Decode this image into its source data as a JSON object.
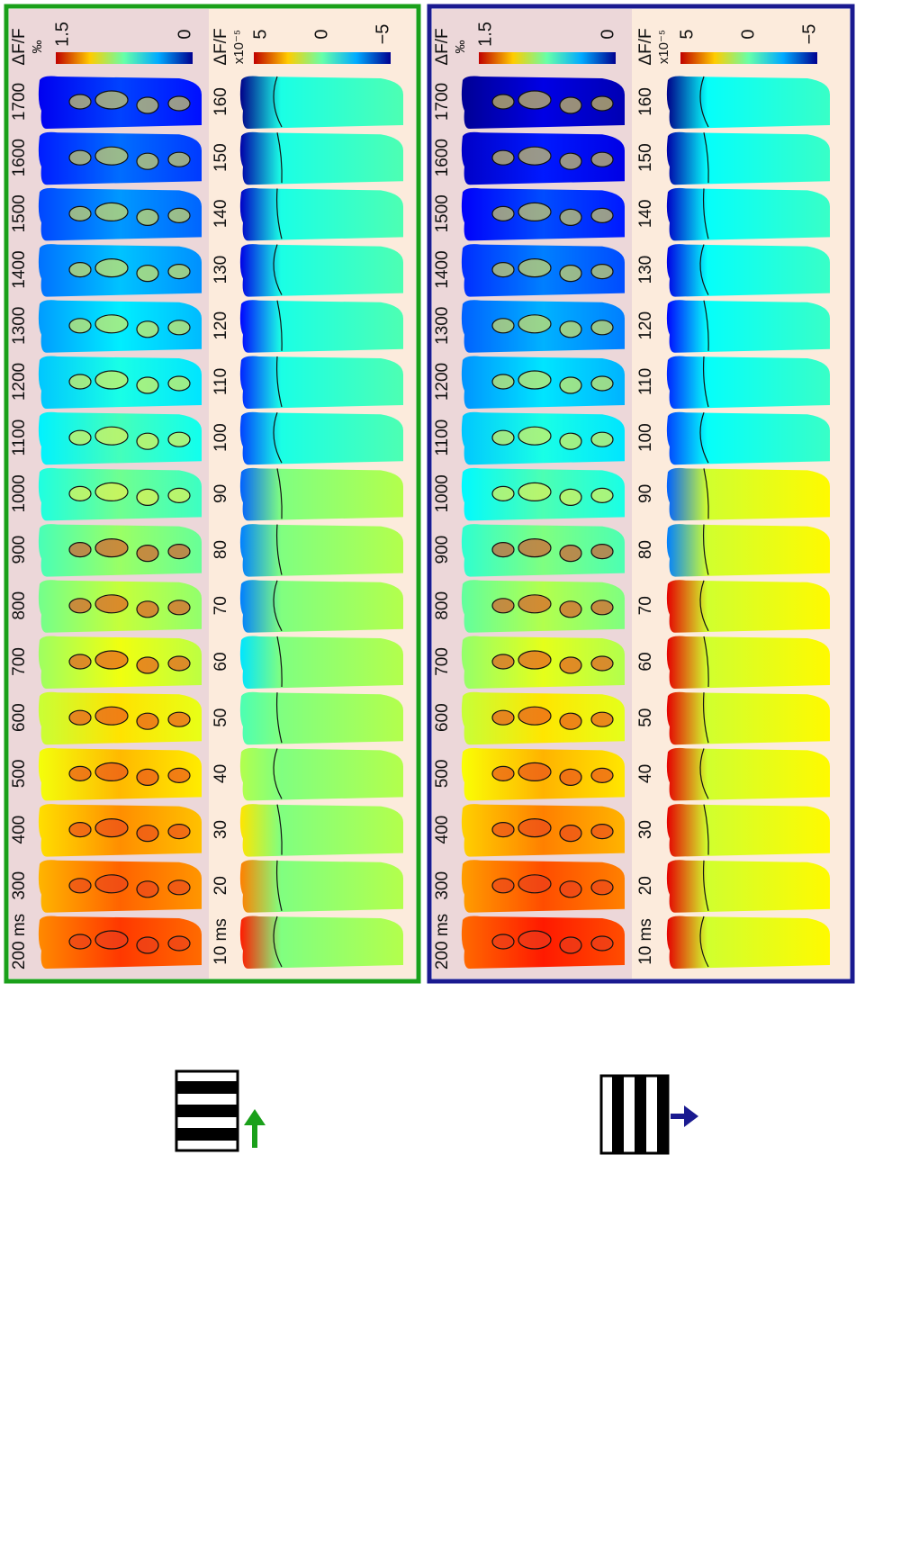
{
  "panels": [
    {
      "left": {
        "unit": "ΔF/F",
        "unit_sub": "‰",
        "cbar_labels": [
          "1.5",
          "0"
        ],
        "frame_labels": [
          "200 ms",
          "300",
          "400",
          "500",
          "600",
          "700",
          "800",
          "900",
          "1000",
          "1100",
          "1200",
          "1300",
          "1400",
          "1500",
          "1600",
          "1700"
        ]
      },
      "right": {
        "unit": "ΔF/F",
        "unit_sub": "x10⁻⁵",
        "cbar_labels": [
          "5",
          "0",
          "−5"
        ],
        "frame_labels": [
          "10 ms",
          "20",
          "30",
          "40",
          "50",
          "60",
          "70",
          "80",
          "90",
          "100",
          "110",
          "120",
          "130",
          "140",
          "150",
          "160"
        ]
      }
    },
    {
      "left": {
        "unit": "ΔF/F",
        "unit_sub": "‰",
        "cbar_labels": [
          "1.5",
          "0"
        ],
        "frame_labels": [
          "200 ms",
          "300",
          "400",
          "500",
          "600",
          "700",
          "800",
          "900",
          "1000",
          "1100",
          "1200",
          "1300",
          "1400",
          "1500",
          "1600",
          "1700"
        ]
      },
      "right": {
        "unit": "ΔF/F",
        "unit_sub": "x10⁻⁵",
        "cbar_labels": [
          "5",
          "0",
          "−5"
        ],
        "frame_labels": [
          "10 ms",
          "20",
          "30",
          "40",
          "50",
          "60",
          "70",
          "80",
          "90",
          "100",
          "110",
          "120",
          "130",
          "140",
          "150",
          "160"
        ]
      }
    }
  ]
}
